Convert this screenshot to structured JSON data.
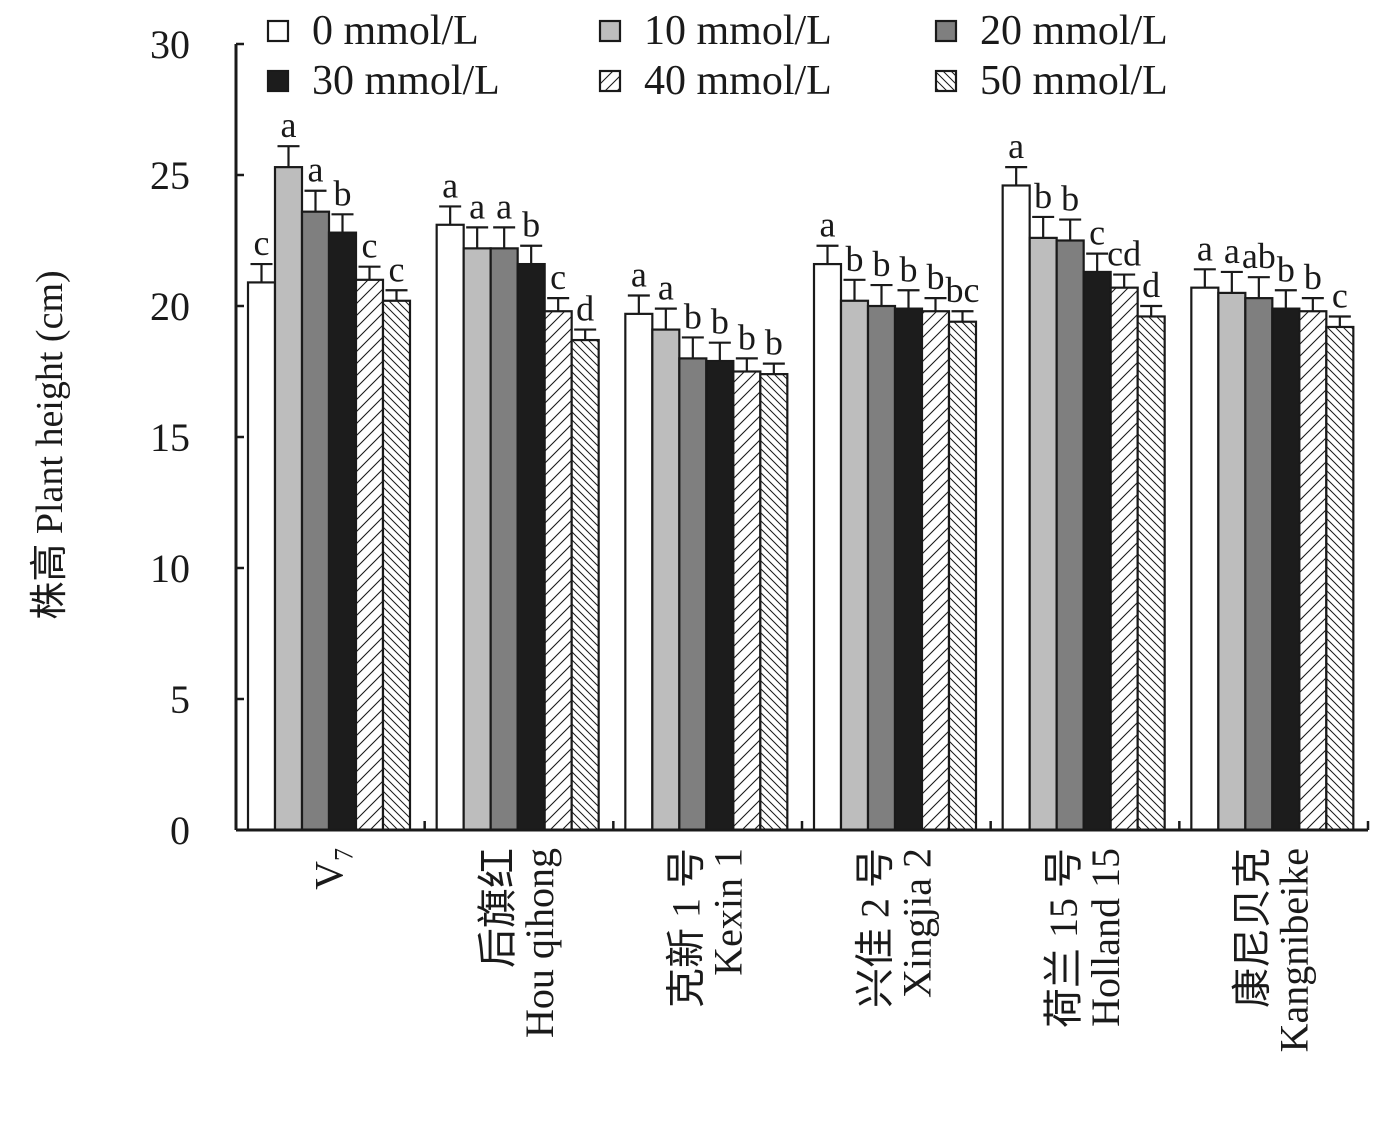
{
  "chart_data": {
    "type": "bar",
    "ylabel": "株高 Plant height (cm)",
    "ylim": [
      0,
      30
    ],
    "yticks": [
      0,
      5,
      10,
      15,
      20,
      25,
      30
    ],
    "grid": false,
    "legend_position": "top",
    "categories": [
      {
        "cn": "",
        "en": "V",
        "sub": "7"
      },
      {
        "cn": "后旗红",
        "en": "Hou qihong",
        "sub": ""
      },
      {
        "cn": "克新 1 号",
        "en": "Kexin 1",
        "sub": ""
      },
      {
        "cn": "兴佳 2 号",
        "en": "Xingjia 2",
        "sub": ""
      },
      {
        "cn": "荷兰 15 号",
        "en": "Holland 15",
        "sub": ""
      },
      {
        "cn": "康尼贝克",
        "en": "Kangnibeike",
        "sub": ""
      }
    ],
    "series": [
      {
        "name": "0 mmol/L",
        "fill": "#ffffff",
        "pattern": "none",
        "values": [
          20.9,
          23.1,
          19.7,
          21.6,
          24.6,
          20.7
        ],
        "errors": [
          0.7,
          0.7,
          0.7,
          0.7,
          0.7,
          0.7
        ],
        "letters": [
          "c",
          "a",
          "a",
          "a",
          "a",
          "a"
        ]
      },
      {
        "name": "10 mmol/L",
        "fill": "#bdbdbd",
        "pattern": "none",
        "values": [
          25.3,
          22.2,
          19.1,
          20.2,
          22.6,
          20.5
        ],
        "errors": [
          0.8,
          0.8,
          0.8,
          0.8,
          0.8,
          0.8
        ],
        "letters": [
          "a",
          "a",
          "a",
          "b",
          "b",
          "a"
        ]
      },
      {
        "name": "20 mmol/L",
        "fill": "#7f7f7f",
        "pattern": "none",
        "values": [
          23.6,
          22.2,
          18.0,
          20.0,
          22.5,
          20.3
        ],
        "errors": [
          0.8,
          0.8,
          0.8,
          0.8,
          0.8,
          0.8
        ],
        "letters": [
          "a",
          "a",
          "b",
          "b",
          "b",
          "ab"
        ]
      },
      {
        "name": "30 mmol/L",
        "fill": "#1c1c1c",
        "pattern": "none",
        "values": [
          22.8,
          21.6,
          17.9,
          19.9,
          21.3,
          19.9
        ],
        "errors": [
          0.7,
          0.7,
          0.7,
          0.7,
          0.7,
          0.7
        ],
        "letters": [
          "b",
          "b",
          "b",
          "b",
          "c",
          "b"
        ]
      },
      {
        "name": "40 mmol/L",
        "fill": "#ffffff",
        "pattern": "hatch-right",
        "values": [
          21.0,
          19.8,
          17.5,
          19.8,
          20.7,
          19.8
        ],
        "errors": [
          0.5,
          0.5,
          0.5,
          0.5,
          0.5,
          0.5
        ],
        "letters": [
          "c",
          "c",
          "b",
          "b",
          "cd",
          "b"
        ]
      },
      {
        "name": "50 mmol/L",
        "fill": "#ffffff",
        "pattern": "hatch-left",
        "values": [
          20.2,
          18.7,
          17.4,
          19.4,
          19.6,
          19.2
        ],
        "errors": [
          0.4,
          0.4,
          0.4,
          0.4,
          0.4,
          0.4
        ],
        "letters": [
          "c",
          "d",
          "b",
          "bc",
          "d",
          "c"
        ]
      }
    ]
  }
}
